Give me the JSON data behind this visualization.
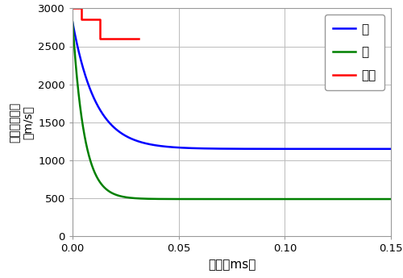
{
  "xlabel": "時刻（ms）",
  "ylabel_top": "（m/s）",
  "ylabel_bottom": "飛翔体の速度",
  "xlim": [
    0,
    0.15
  ],
  "ylim": [
    0,
    3000
  ],
  "yticks": [
    0,
    500,
    1000,
    1500,
    2000,
    2500,
    3000
  ],
  "xticks": [
    0.0,
    0.05,
    0.1,
    0.15
  ],
  "legend_labels": [
    "水",
    "砂",
    "空気"
  ],
  "water_color": "#0000ff",
  "sand_color": "#008000",
  "air_color": "#ff0000",
  "line_width": 1.8,
  "grid_color": "#bbbbbb",
  "background_color": "#ffffff",
  "water_v0": 2820,
  "water_vinf": 1150,
  "water_tau": 0.011,
  "sand_v0": 2820,
  "sand_vinf": 490,
  "sand_tau": 0.0055,
  "air_t": [
    0.0,
    0.004,
    0.004,
    0.013,
    0.013,
    0.031
  ],
  "air_v": [
    3000,
    3000,
    2850,
    2850,
    2600,
    2600
  ]
}
